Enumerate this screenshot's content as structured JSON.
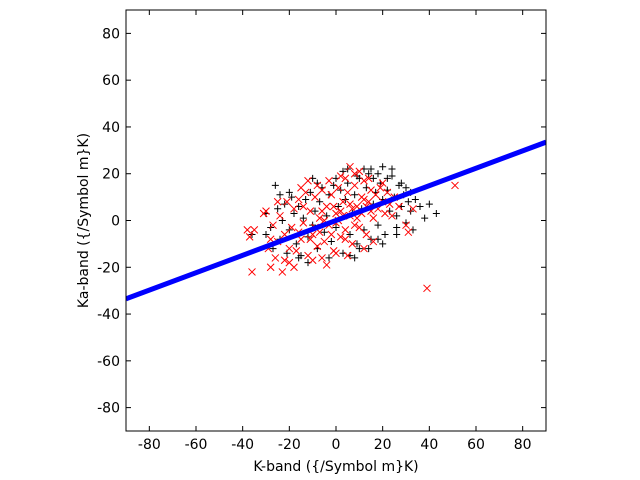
{
  "chart_data": {
    "type": "scatter",
    "title": "",
    "xlabel": "K-band ({/Symbol m}K)",
    "ylabel": "Ka-band ({/Symbol m}K)",
    "xlim": [
      -90,
      90
    ],
    "ylim": [
      -90,
      90
    ],
    "xticks": [
      -80,
      -60,
      -40,
      -20,
      0,
      20,
      40,
      60,
      80
    ],
    "yticks": [
      -80,
      -60,
      -40,
      -20,
      0,
      20,
      40,
      60,
      80
    ],
    "xtick_labels": [
      "-80",
      "-60",
      "-40",
      "-20",
      "0",
      "20",
      "40",
      "60",
      "80"
    ],
    "ytick_labels": [
      "-80",
      "-60",
      "-40",
      "-20",
      "0",
      "20",
      "40",
      "60",
      "80"
    ],
    "grid": false,
    "legend": "none",
    "series": [
      {
        "marker": "plus",
        "color": "#000000",
        "points": [
          [
            -36,
            -6
          ],
          [
            -30,
            3
          ],
          [
            -28,
            -3
          ],
          [
            -27,
            -12
          ],
          [
            -25,
            5
          ],
          [
            -24,
            -8
          ],
          [
            -23,
            0
          ],
          [
            -22,
            7
          ],
          [
            -21,
            -14
          ],
          [
            -20,
            -4
          ],
          [
            -19,
            10
          ],
          [
            -18,
            3
          ],
          [
            -17,
            -10
          ],
          [
            -16,
            6
          ],
          [
            -15,
            -15
          ],
          [
            -14,
            1
          ],
          [
            -13,
            9
          ],
          [
            -12,
            -7
          ],
          [
            -11,
            12
          ],
          [
            -10,
            -2
          ],
          [
            -9,
            4
          ],
          [
            -8,
            -12
          ],
          [
            -7,
            8
          ],
          [
            -6,
            14
          ],
          [
            -5,
            -5
          ],
          [
            -4,
            2
          ],
          [
            -3,
            11
          ],
          [
            -2,
            -9
          ],
          [
            -1,
            15
          ],
          [
            0,
            -3
          ],
          [
            1,
            6
          ],
          [
            2,
            13
          ],
          [
            3,
            -14
          ],
          [
            4,
            9
          ],
          [
            5,
            16
          ],
          [
            6,
            -6
          ],
          [
            7,
            3
          ],
          [
            8,
            11
          ],
          [
            9,
            -10
          ],
          [
            10,
            18
          ],
          [
            11,
            5
          ],
          [
            12,
            -4
          ],
          [
            13,
            14
          ],
          [
            14,
            20
          ],
          [
            15,
            -8
          ],
          [
            16,
            7
          ],
          [
            17,
            12
          ],
          [
            18,
            -2
          ],
          [
            19,
            16
          ],
          [
            20,
            9
          ],
          [
            21,
            -6
          ],
          [
            22,
            13
          ],
          [
            23,
            4
          ],
          [
            24,
            19
          ],
          [
            25,
            10
          ],
          [
            26,
            -3
          ],
          [
            27,
            15
          ],
          [
            28,
            6
          ],
          [
            29,
            11
          ],
          [
            30,
            -1
          ],
          [
            31,
            8
          ],
          [
            32,
            4
          ],
          [
            34,
            9
          ],
          [
            36,
            6
          ],
          [
            38,
            1
          ],
          [
            40,
            7
          ],
          [
            43,
            3
          ],
          [
            -26,
            15
          ],
          [
            -12,
            -18
          ],
          [
            5,
            22
          ],
          [
            10,
            -12
          ],
          [
            18,
            20
          ],
          [
            24,
            22
          ],
          [
            26,
            -6
          ],
          [
            12,
            22
          ],
          [
            -30,
            -6
          ],
          [
            -20,
            12
          ],
          [
            0,
            18
          ],
          [
            8,
            -16
          ],
          [
            15,
            22
          ],
          [
            20,
            -10
          ],
          [
            28,
            16
          ],
          [
            33,
            -4
          ],
          [
            3,
            21
          ],
          [
            -8,
            16
          ],
          [
            -16,
            -16
          ],
          [
            22,
            18
          ],
          [
            6,
            -15
          ],
          [
            -3,
            -16
          ],
          [
            14,
            -12
          ],
          [
            20,
            23
          ],
          [
            -24,
            11
          ],
          [
            18,
            -8
          ],
          [
            32,
            12
          ],
          [
            -10,
            18
          ],
          [
            26,
            2
          ],
          [
            30,
            14
          ],
          [
            16,
            18
          ],
          [
            9,
            19
          ]
        ]
      },
      {
        "marker": "cross",
        "color": "#ff0000",
        "points": [
          [
            -38,
            -4
          ],
          [
            -37,
            -7
          ],
          [
            -36,
            -22
          ],
          [
            -31,
            3
          ],
          [
            -30,
            4
          ],
          [
            -29,
            -12
          ],
          [
            -28,
            -20
          ],
          [
            -27,
            -2
          ],
          [
            -26,
            -16
          ],
          [
            -25,
            -9
          ],
          [
            -24,
            2
          ],
          [
            -23,
            -22
          ],
          [
            -22,
            -6
          ],
          [
            -21,
            8
          ],
          [
            -20,
            -18
          ],
          [
            -19,
            -3
          ],
          [
            -18,
            5
          ],
          [
            -17,
            -13
          ],
          [
            -16,
            9
          ],
          [
            -15,
            -8
          ],
          [
            -14,
            -1
          ],
          [
            -13,
            12
          ],
          [
            -12,
            -15
          ],
          [
            -11,
            4
          ],
          [
            -10,
            -6
          ],
          [
            -9,
            10
          ],
          [
            -8,
            -11
          ],
          [
            -7,
            1
          ],
          [
            -6,
            13
          ],
          [
            -5,
            -9
          ],
          [
            -4,
            6
          ],
          [
            -3,
            -2
          ],
          [
            -2,
            11
          ],
          [
            -1,
            -13
          ],
          [
            0,
            3
          ],
          [
            1,
            14
          ],
          [
            2,
            -7
          ],
          [
            3,
            8
          ],
          [
            4,
            -4
          ],
          [
            5,
            12
          ],
          [
            6,
            2
          ],
          [
            7,
            -10
          ],
          [
            8,
            15
          ],
          [
            9,
            6
          ],
          [
            10,
            -3
          ],
          [
            11,
            10
          ],
          [
            12,
            17
          ],
          [
            13,
            -6
          ],
          [
            14,
            8
          ],
          [
            15,
            13
          ],
          [
            16,
            1
          ],
          [
            17,
            11
          ],
          [
            18,
            5
          ],
          [
            19,
            14
          ],
          [
            20,
            8
          ],
          [
            21,
            3
          ],
          [
            22,
            12
          ],
          [
            23,
            7
          ],
          [
            24,
            2
          ],
          [
            25,
            10
          ],
          [
            27,
            6
          ],
          [
            30,
            -2
          ],
          [
            31,
            -5
          ],
          [
            33,
            5
          ],
          [
            39,
            -29
          ],
          [
            51,
            15
          ],
          [
            -35,
            -4
          ],
          [
            -22,
            -17
          ],
          [
            -18,
            -20
          ],
          [
            -12,
            17
          ],
          [
            -6,
            -16
          ],
          [
            0,
            -14
          ],
          [
            4,
            18
          ],
          [
            8,
            20
          ],
          [
            6,
            23
          ],
          [
            12,
            -12
          ],
          [
            16,
            -9
          ],
          [
            20,
            16
          ],
          [
            -25,
            8
          ],
          [
            -15,
            14
          ],
          [
            -8,
            15
          ],
          [
            -3,
            17
          ],
          [
            2,
            19
          ],
          [
            10,
            21
          ],
          [
            14,
            18
          ],
          [
            -20,
            -12
          ],
          [
            -10,
            -17
          ],
          [
            -4,
            -19
          ],
          [
            5,
            -15
          ],
          [
            -28,
            -8
          ],
          [
            -16,
            -5
          ],
          [
            -14,
            6
          ],
          [
            -6,
            4
          ],
          [
            -2,
            -6
          ],
          [
            1,
            0
          ],
          [
            3,
            2
          ],
          [
            7,
            5
          ],
          [
            11,
            3
          ],
          [
            -9,
            -3
          ],
          [
            -5,
            0
          ],
          [
            0,
            -1
          ],
          [
            2,
            4
          ],
          [
            6,
            7
          ],
          [
            9,
            1
          ],
          [
            13,
            6
          ],
          [
            -11,
            -8
          ],
          [
            -7,
            -5
          ],
          [
            -1,
            6
          ],
          [
            4,
            -8
          ],
          [
            8,
            -2
          ],
          [
            12,
            9
          ],
          [
            15,
            4
          ]
        ]
      },
      {
        "marker": "line",
        "color": "#0000ff",
        "x": [
          -90,
          90
        ],
        "y": [
          -33.5,
          33.5
        ]
      }
    ]
  }
}
